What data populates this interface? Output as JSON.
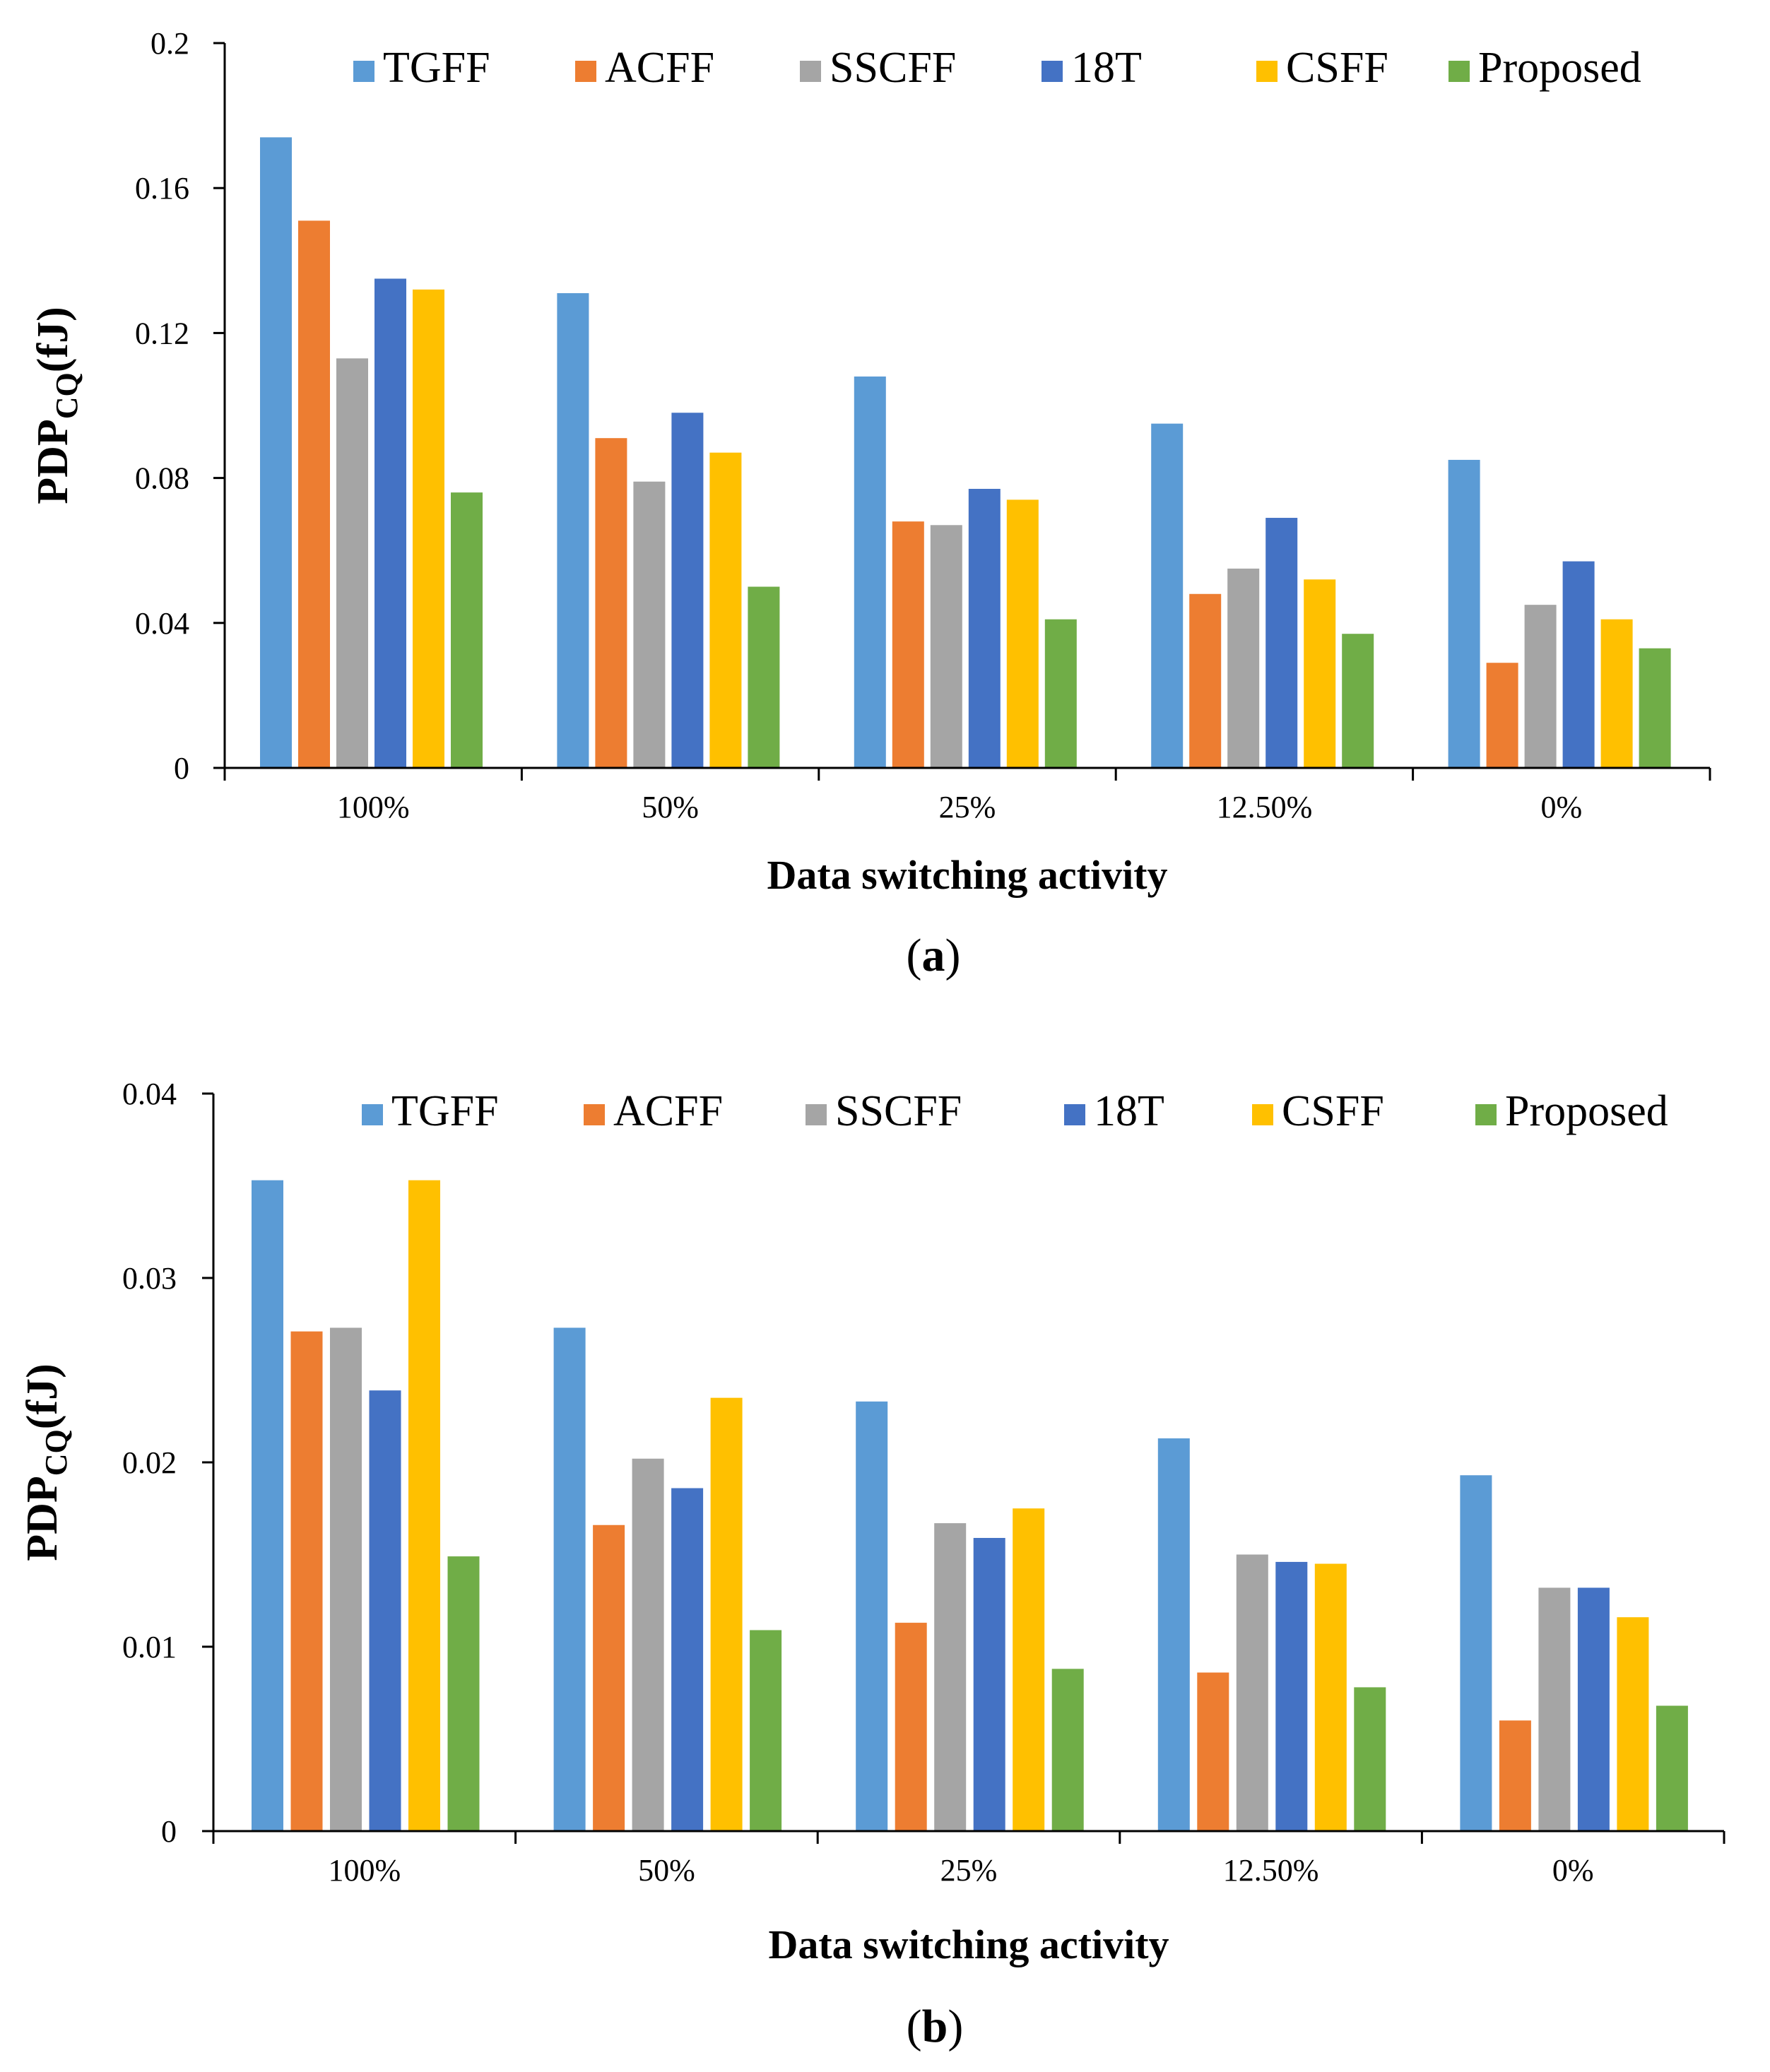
{
  "colors": {
    "TGFF": "#5B9BD5",
    "ACFF": "#ED7D31",
    "SSCFF": "#A5A5A5",
    "18T": "#4472C4",
    "CSFF": "#FFC000",
    "Proposed": "#70AD47"
  },
  "chart_data": [
    {
      "type": "bar",
      "categories": [
        "100%",
        "50%",
        "25%",
        "12.50%",
        "0%"
      ],
      "series": [
        {
          "name": "TGFF",
          "values": [
            0.174,
            0.131,
            0.108,
            0.095,
            0.085
          ]
        },
        {
          "name": "ACFF",
          "values": [
            0.151,
            0.091,
            0.068,
            0.048,
            0.029
          ]
        },
        {
          "name": "SSCFF",
          "values": [
            0.113,
            0.079,
            0.067,
            0.055,
            0.045
          ]
        },
        {
          "name": "18T",
          "values": [
            0.135,
            0.098,
            0.077,
            0.069,
            0.057
          ]
        },
        {
          "name": "CSFF",
          "values": [
            0.132,
            0.087,
            0.074,
            0.052,
            0.041
          ]
        },
        {
          "name": "Proposed",
          "values": [
            0.076,
            0.05,
            0.041,
            0.037,
            0.033
          ]
        }
      ],
      "yticks": [
        "0",
        "0.04",
        "0.08",
        "0.12",
        "0.16",
        "0.2"
      ],
      "ylim": [
        0,
        0.2
      ],
      "ylabel_main": "PDP",
      "ylabel_sub": "CQ",
      "ylabel_unit": "(fJ)",
      "xlabel": "Data switching activity",
      "caption_open": "(",
      "caption_letter": "a",
      "caption_close": ")",
      "legend_position": "top"
    },
    {
      "type": "bar",
      "categories": [
        "100%",
        "50%",
        "25%",
        "12.50%",
        "0%"
      ],
      "series": [
        {
          "name": "TGFF",
          "values": [
            0.0353,
            0.0273,
            0.0233,
            0.0213,
            0.0193
          ]
        },
        {
          "name": "ACFF",
          "values": [
            0.0271,
            0.0166,
            0.0113,
            0.0086,
            0.006
          ]
        },
        {
          "name": "SSCFF",
          "values": [
            0.0273,
            0.0202,
            0.0167,
            0.015,
            0.0132
          ]
        },
        {
          "name": "18T",
          "values": [
            0.0239,
            0.0186,
            0.0159,
            0.0146,
            0.0132
          ]
        },
        {
          "name": "CSFF",
          "values": [
            0.0353,
            0.0235,
            0.0175,
            0.0145,
            0.0116
          ]
        },
        {
          "name": "Proposed",
          "values": [
            0.0149,
            0.0109,
            0.0088,
            0.0078,
            0.0068
          ]
        }
      ],
      "yticks": [
        "0",
        "0.01",
        "0.02",
        "0.03",
        "0.04"
      ],
      "ylim": [
        0,
        0.04
      ],
      "ylabel_main": "PDP",
      "ylabel_sub": "CQ",
      "ylabel_unit": "(fJ)",
      "xlabel": "Data switching activity",
      "caption_open": "(",
      "caption_letter": "b",
      "caption_close": ")",
      "legend_position": "top"
    }
  ]
}
